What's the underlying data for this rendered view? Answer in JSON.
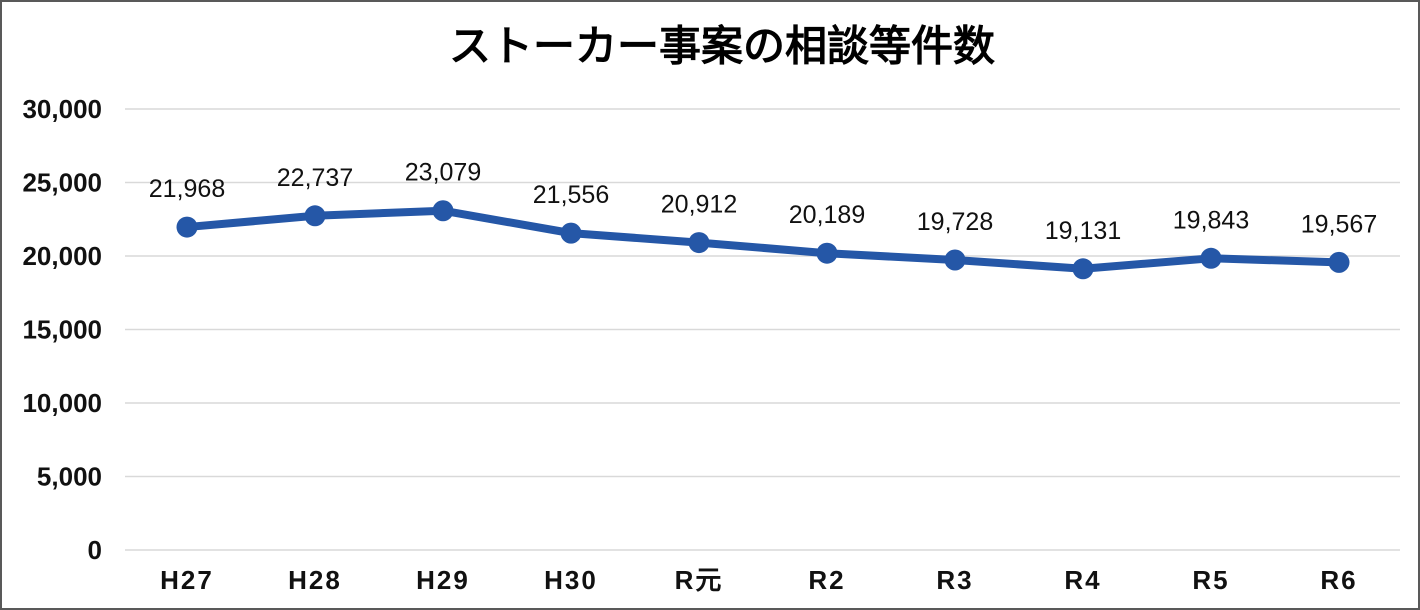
{
  "chart_data": {
    "type": "line",
    "title": "ストーカー事案の相談等件数",
    "categories": [
      "H27",
      "H28",
      "H29",
      "H30",
      "R元",
      "R2",
      "R3",
      "R4",
      "R5",
      "R6"
    ],
    "values": [
      21968,
      22737,
      23079,
      21556,
      20912,
      20189,
      19728,
      19131,
      19843,
      19567
    ],
    "point_labels": [
      "21,968",
      "22,737",
      "23,079",
      "21,556",
      "20,912",
      "20,189",
      "19,728",
      "19,131",
      "19,843",
      "19,567"
    ],
    "y_ticks": [
      0,
      5000,
      10000,
      15000,
      20000,
      25000,
      30000
    ],
    "y_tick_labels": [
      "0",
      "5,000",
      "10,000",
      "15,000",
      "20,000",
      "25,000",
      "30,000"
    ],
    "ylim": [
      0,
      30000
    ],
    "xlabel": "",
    "ylabel": "",
    "grid": true,
    "legend": "none",
    "colors": {
      "line": "#2557A7",
      "marker": "#2557A7",
      "gridline": "#D9D9D9",
      "text": "#000000",
      "frame_border": "#595959",
      "background": "#FFFFFF"
    }
  }
}
